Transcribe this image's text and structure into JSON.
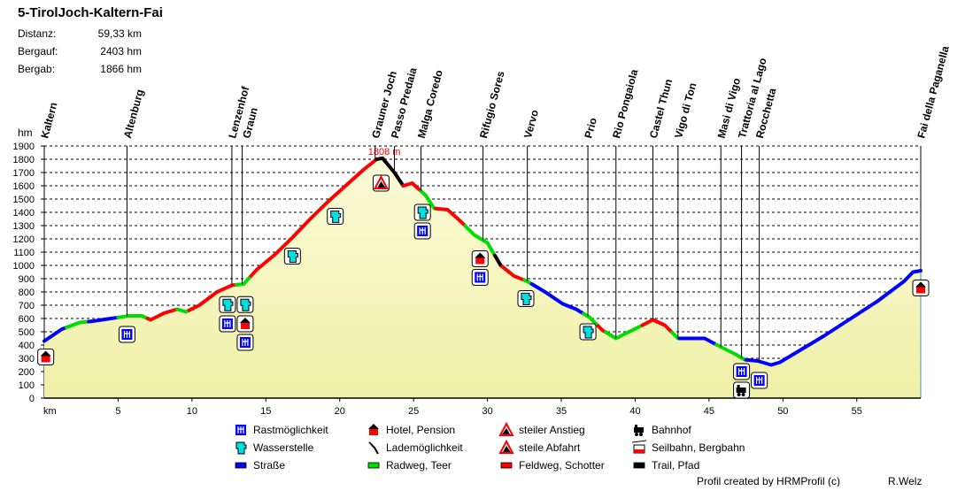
{
  "header": {
    "title": "5-TirolJoch-Kaltern-Fai",
    "stats": [
      {
        "label": "Distanz:",
        "value": "59,33 km"
      },
      {
        "label": "Bergauf:",
        "value": "2403 hm"
      },
      {
        "label": "Bergab:",
        "value": "1866 hm"
      }
    ]
  },
  "chart_data": {
    "type": "area",
    "xlabel": "km",
    "ylabel": "hm",
    "xlim": [
      0,
      59.33
    ],
    "ylim": [
      0,
      1900
    ],
    "xticks": [
      5,
      10,
      15,
      20,
      25,
      30,
      35,
      40,
      45,
      50,
      55
    ],
    "yticks": [
      0,
      100,
      200,
      300,
      400,
      500,
      600,
      700,
      800,
      900,
      1000,
      1100,
      1200,
      1300,
      1400,
      1500,
      1600,
      1700,
      1800,
      1900
    ],
    "grid": true,
    "fill_color": "#f4f4b8",
    "peak_label": "1808 m",
    "peak": {
      "km": 22.9,
      "elev": 1808
    },
    "profile": [
      [
        0,
        430
      ],
      [
        1.2,
        520
      ],
      [
        2.4,
        570
      ],
      [
        3.3,
        580
      ],
      [
        4.5,
        600
      ],
      [
        5.7,
        620
      ],
      [
        6.6,
        620
      ],
      [
        7.2,
        590
      ],
      [
        8.1,
        640
      ],
      [
        9.0,
        670
      ],
      [
        9.6,
        650
      ],
      [
        10.5,
        700
      ],
      [
        11.7,
        800
      ],
      [
        12.7,
        850
      ],
      [
        13.5,
        860
      ],
      [
        14.4,
        970
      ],
      [
        15.6,
        1080
      ],
      [
        16.8,
        1210
      ],
      [
        18.0,
        1350
      ],
      [
        19.2,
        1480
      ],
      [
        20.4,
        1600
      ],
      [
        21.6,
        1720
      ],
      [
        22.5,
        1800
      ],
      [
        22.9,
        1808
      ],
      [
        23.7,
        1700
      ],
      [
        24.3,
        1600
      ],
      [
        24.9,
        1620
      ],
      [
        25.8,
        1530
      ],
      [
        26.4,
        1430
      ],
      [
        27.3,
        1420
      ],
      [
        28.2,
        1330
      ],
      [
        29.1,
        1230
      ],
      [
        30.0,
        1170
      ],
      [
        30.9,
        1000
      ],
      [
        31.8,
        920
      ],
      [
        32.7,
        880
      ],
      [
        33.9,
        800
      ],
      [
        35.1,
        710
      ],
      [
        36.0,
        670
      ],
      [
        36.9,
        610
      ],
      [
        37.8,
        510
      ],
      [
        38.7,
        450
      ],
      [
        39.6,
        500
      ],
      [
        40.5,
        550
      ],
      [
        41.2,
        590
      ],
      [
        42.0,
        550
      ],
      [
        42.9,
        450
      ],
      [
        43.8,
        450
      ],
      [
        44.7,
        450
      ],
      [
        45.9,
        380
      ],
      [
        46.8,
        330
      ],
      [
        47.4,
        290
      ],
      [
        48.3,
        280
      ],
      [
        49.2,
        250
      ],
      [
        49.8,
        270
      ],
      [
        51.0,
        350
      ],
      [
        52.8,
        470
      ],
      [
        54.6,
        600
      ],
      [
        56.4,
        730
      ],
      [
        58.2,
        880
      ],
      [
        58.8,
        950
      ],
      [
        59.33,
        960
      ]
    ],
    "surfaces": [
      {
        "from": 0,
        "to": 1.5,
        "type": "strasse"
      },
      {
        "from": 1.5,
        "to": 3,
        "type": "radweg"
      },
      {
        "from": 3,
        "to": 5,
        "type": "strasse"
      },
      {
        "from": 5,
        "to": 7,
        "type": "radweg"
      },
      {
        "from": 7,
        "to": 9,
        "type": "feldweg"
      },
      {
        "from": 9,
        "to": 9.8,
        "type": "radweg"
      },
      {
        "from": 9.8,
        "to": 13,
        "type": "feldweg"
      },
      {
        "from": 13,
        "to": 14,
        "type": "radweg"
      },
      {
        "from": 14,
        "to": 22.5,
        "type": "feldweg"
      },
      {
        "from": 22.5,
        "to": 24.3,
        "type": "trail"
      },
      {
        "from": 24.3,
        "to": 25.5,
        "type": "feldweg"
      },
      {
        "from": 25.5,
        "to": 26.5,
        "type": "radweg"
      },
      {
        "from": 26.5,
        "to": 28.5,
        "type": "feldweg"
      },
      {
        "from": 28.5,
        "to": 30.5,
        "type": "radweg"
      },
      {
        "from": 30.5,
        "to": 31,
        "type": "trail"
      },
      {
        "from": 31,
        "to": 32.5,
        "type": "feldweg"
      },
      {
        "from": 32.5,
        "to": 33,
        "type": "radweg"
      },
      {
        "from": 33,
        "to": 36.5,
        "type": "strasse"
      },
      {
        "from": 36.5,
        "to": 37.5,
        "type": "radweg"
      },
      {
        "from": 37.5,
        "to": 38,
        "type": "feldweg"
      },
      {
        "from": 38,
        "to": 40.5,
        "type": "radweg"
      },
      {
        "from": 40.5,
        "to": 42.5,
        "type": "feldweg"
      },
      {
        "from": 42.5,
        "to": 43,
        "type": "radweg"
      },
      {
        "from": 43,
        "to": 45.5,
        "type": "strasse"
      },
      {
        "from": 45.5,
        "to": 47.5,
        "type": "radweg"
      },
      {
        "from": 47.5,
        "to": 59.33,
        "type": "strasse"
      }
    ],
    "surface_colors": {
      "strasse": "#0000ff",
      "radweg": "#00dd00",
      "feldweg": "#ff0000",
      "trail": "#000000"
    },
    "waypoints": [
      {
        "name": "Kaltern",
        "km": 0
      },
      {
        "name": "Altenburg",
        "km": 5.6
      },
      {
        "name": "Lenzenhof",
        "km": 12.7
      },
      {
        "name": "Graun",
        "km": 13.4
      },
      {
        "name": "Grauner Joch",
        "km": 22.4
      },
      {
        "name": "Passo Predaia",
        "km": 23.7
      },
      {
        "name": "Malga Coredo",
        "km": 25.5
      },
      {
        "name": "Rifugio Sores",
        "km": 29.7
      },
      {
        "name": "Vervo",
        "km": 32.7
      },
      {
        "name": "Prio",
        "km": 36.8
      },
      {
        "name": "Rio Pongaiola",
        "km": 38.7
      },
      {
        "name": "Castel Thun",
        "km": 41.2
      },
      {
        "name": "Vigo di Ton",
        "km": 42.9
      },
      {
        "name": "Masi di Vigo",
        "km": 45.8
      },
      {
        "name": "Trattoria al Lago",
        "km": 47.2
      },
      {
        "name": "Rocchetta",
        "km": 48.4
      },
      {
        "name": "Fai della Paganella",
        "km": 59.33
      }
    ],
    "markers": [
      {
        "type": "hotel",
        "km": 0.1,
        "elev": 310
      },
      {
        "type": "rast",
        "km": 5.6,
        "elev": 480
      },
      {
        "type": "wasser",
        "km": 12.4,
        "elev": 705
      },
      {
        "type": "wasser",
        "km": 13.6,
        "elev": 705
      },
      {
        "type": "rast",
        "km": 12.4,
        "elev": 560
      },
      {
        "type": "hotel",
        "km": 13.6,
        "elev": 560
      },
      {
        "type": "rast",
        "km": 13.6,
        "elev": 420
      },
      {
        "type": "wasser",
        "km": 16.8,
        "elev": 1070
      },
      {
        "type": "wasser",
        "km": 19.7,
        "elev": 1370
      },
      {
        "type": "abfahrt",
        "km": 22.8,
        "elev": 1620
      },
      {
        "type": "wasser",
        "km": 25.6,
        "elev": 1400
      },
      {
        "type": "rast",
        "km": 25.6,
        "elev": 1260
      },
      {
        "type": "hotel",
        "km": 29.5,
        "elev": 1050
      },
      {
        "type": "rast",
        "km": 29.5,
        "elev": 910
      },
      {
        "type": "wasser",
        "km": 32.6,
        "elev": 750
      },
      {
        "type": "wasser",
        "km": 36.8,
        "elev": 500
      },
      {
        "type": "rast",
        "km": 47.2,
        "elev": 200
      },
      {
        "type": "rast",
        "km": 48.4,
        "elev": 133
      },
      {
        "type": "bahnhof",
        "km": 47.2,
        "elev": 60
      },
      {
        "type": "hotel",
        "km": 59.33,
        "elev": 830
      }
    ]
  },
  "legend": [
    {
      "icon": "rast",
      "label": "Rastmöglichkeit"
    },
    {
      "icon": "hotel",
      "label": "Hotel, Pension"
    },
    {
      "icon": "anstieg",
      "label": "steiler Anstieg"
    },
    {
      "icon": "bahnhof",
      "label": "Bahnhof"
    },
    {
      "icon": "wasser",
      "label": "Wasserstelle"
    },
    {
      "icon": "lade",
      "label": "Lademöglichkeit"
    },
    {
      "icon": "abfahrt",
      "label": "steile Abfahrt"
    },
    {
      "icon": "seilbahn",
      "label": "Seilbahn, Bergbahn"
    },
    {
      "icon": "strasse",
      "label": "Straße"
    },
    {
      "icon": "radweg",
      "label": "Radweg, Teer"
    },
    {
      "icon": "feldweg",
      "label": "Feldweg, Schotter"
    },
    {
      "icon": "trail",
      "label": "Trail, Pfad"
    }
  ],
  "footer": {
    "credit": "Profil created by HRMProfil (c)",
    "author": "R.Welz"
  }
}
